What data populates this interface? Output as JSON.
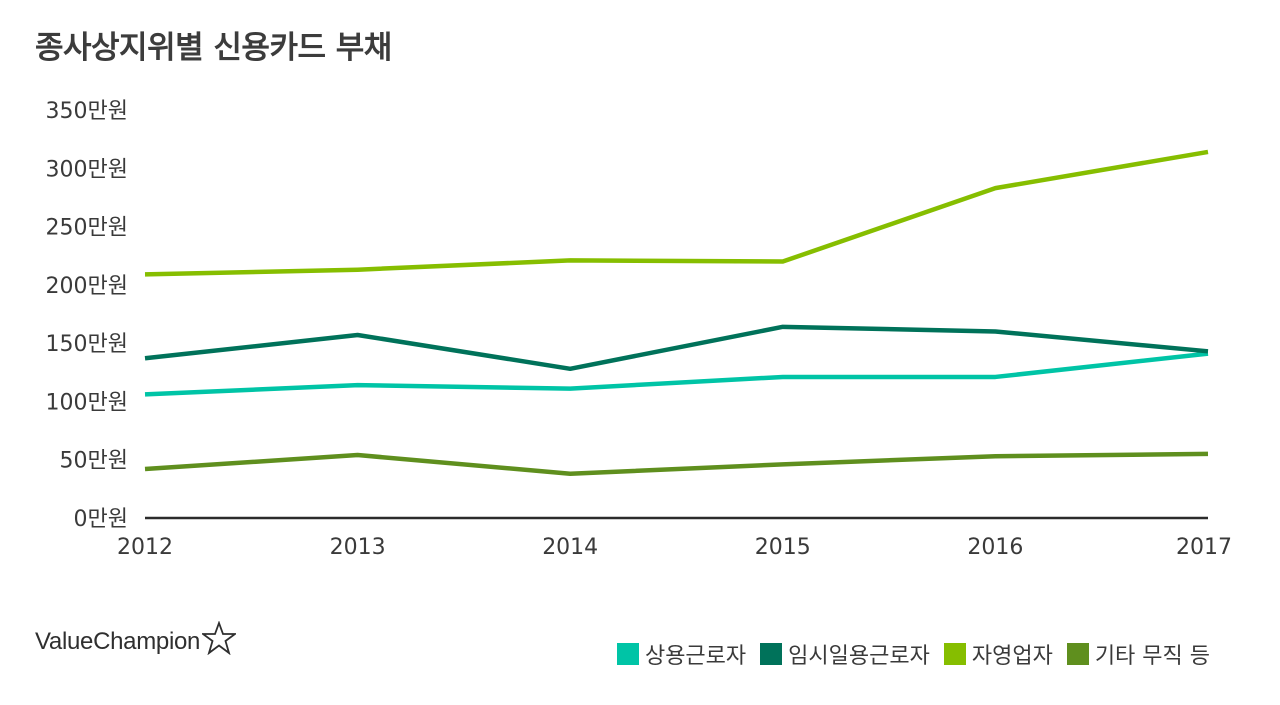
{
  "chart_data": {
    "type": "line",
    "title": "종사상지위별 신용카드 부채",
    "xlabel": "",
    "ylabel": "",
    "categories": [
      "2012",
      "2013",
      "2014",
      "2015",
      "2016",
      "2017"
    ],
    "ylim": [
      0,
      350
    ],
    "yticks": [
      "0만원",
      "50만원",
      "100만원",
      "150만원",
      "200만원",
      "250만원",
      "300만원",
      "350만원"
    ],
    "ytick_values": [
      0,
      50,
      100,
      150,
      200,
      250,
      300,
      350
    ],
    "grid": false,
    "legend_position": "bottom-right",
    "series": [
      {
        "name": "상용근로자",
        "color": "#00c4a6",
        "values": [
          106,
          114,
          111,
          121,
          121,
          141
        ]
      },
      {
        "name": "임시일용근로자",
        "color": "#00725a",
        "values": [
          137,
          157,
          128,
          164,
          160,
          143
        ]
      },
      {
        "name": "자영업자",
        "color": "#86be00",
        "values": [
          209,
          213,
          221,
          220,
          283,
          314
        ]
      },
      {
        "name": "기타 무직 등",
        "color": "#5f8f1e",
        "values": [
          42,
          54,
          38,
          46,
          53,
          55
        ]
      }
    ]
  },
  "brand": {
    "name": "ValueChampion",
    "icon": "star-outline-icon"
  }
}
